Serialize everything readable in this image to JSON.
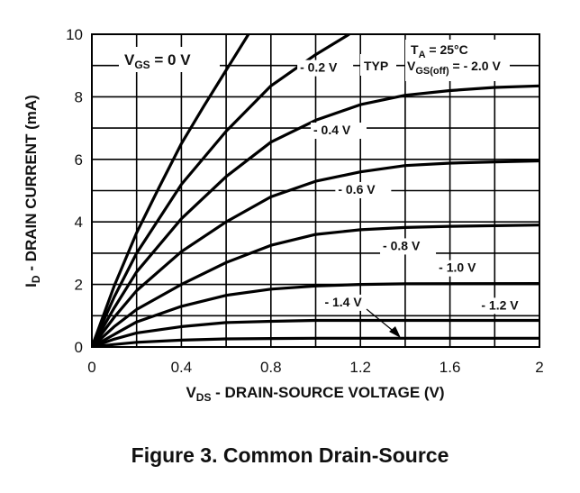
{
  "caption": "Figure 3. Common Drain-Source",
  "chart_data": {
    "type": "line",
    "xlabel_main": "V",
    "xlabel_sub": "DS",
    "xlabel_rest": " - DRAIN-SOURCE VOLTAGE (V)",
    "ylabel_main": "I",
    "ylabel_sub": "D",
    "ylabel_rest": " - DRAIN CURRENT (mA)",
    "xlim": [
      0,
      2
    ],
    "ylim": [
      0,
      10
    ],
    "x_ticks": [
      "0",
      "0.4",
      "0.8",
      "1.2",
      "1.6",
      "2"
    ],
    "y_ticks": [
      "0",
      "2",
      "4",
      "6",
      "8",
      "10"
    ],
    "grid": true,
    "annotations": {
      "typ": "TYP",
      "ta_main": "T",
      "ta_sub": "A",
      "ta_rest": " = 25°C",
      "vgsoff_main": "V",
      "vgsoff_sub": "GS(off)",
      "vgsoff_rest": " = - 2.0 V",
      "vgs_main": "V",
      "vgs_sub": "GS",
      "vgs_rest": " = 0 V"
    },
    "series": [
      {
        "name": "0 V",
        "x": [
          0,
          0.1,
          0.2,
          0.3,
          0.4,
          0.5,
          0.6,
          0.7
        ],
        "y": [
          0,
          1.95,
          3.65,
          5.1,
          6.5,
          7.7,
          8.85,
          10.0
        ]
      },
      {
        "name": "- 0.2 V",
        "x": [
          0,
          0.1,
          0.2,
          0.4,
          0.6,
          0.8,
          1.0,
          1.15
        ],
        "y": [
          0,
          1.6,
          3.0,
          5.2,
          6.9,
          8.35,
          9.35,
          10.0
        ]
      },
      {
        "name": "- 0.4 V",
        "x": [
          0,
          0.1,
          0.2,
          0.4,
          0.6,
          0.8,
          1.0,
          1.2,
          1.4,
          1.6,
          1.8,
          2.0
        ],
        "y": [
          0,
          1.25,
          2.4,
          4.1,
          5.45,
          6.55,
          7.25,
          7.75,
          8.05,
          8.2,
          8.3,
          8.35
        ]
      },
      {
        "name": "- 0.6 V",
        "x": [
          0,
          0.1,
          0.2,
          0.4,
          0.6,
          0.8,
          1.0,
          1.2,
          1.4,
          1.6,
          1.8,
          2.0
        ],
        "y": [
          0,
          0.95,
          1.8,
          3.05,
          4.0,
          4.8,
          5.3,
          5.6,
          5.8,
          5.88,
          5.92,
          5.95
        ]
      },
      {
        "name": "- 0.8 V",
        "x": [
          0,
          0.1,
          0.2,
          0.4,
          0.6,
          0.8,
          1.0,
          1.2,
          1.4,
          1.6,
          1.8,
          2.0
        ],
        "y": [
          0,
          0.65,
          1.2,
          2.0,
          2.7,
          3.25,
          3.6,
          3.75,
          3.82,
          3.86,
          3.88,
          3.9
        ]
      },
      {
        "name": "- 1.0 V",
        "x": [
          0,
          0.1,
          0.2,
          0.4,
          0.6,
          0.8,
          1.0,
          1.2,
          1.4,
          2.0
        ],
        "y": [
          0,
          0.4,
          0.8,
          1.3,
          1.65,
          1.85,
          1.95,
          2.0,
          2.02,
          2.03
        ]
      },
      {
        "name": "- 1.2 V",
        "x": [
          0,
          0.1,
          0.2,
          0.4,
          0.6,
          0.8,
          1.0,
          2.0
        ],
        "y": [
          0,
          0.25,
          0.45,
          0.65,
          0.78,
          0.82,
          0.85,
          0.85
        ]
      },
      {
        "name": "- 1.4 V",
        "x": [
          0,
          0.1,
          0.2,
          0.4,
          0.6,
          0.8,
          1.0,
          2.0
        ],
        "y": [
          0,
          0.08,
          0.15,
          0.22,
          0.26,
          0.27,
          0.28,
          0.28
        ]
      }
    ],
    "curve_labels": [
      {
        "text": "- 0.2 V",
        "x": 0.93,
        "y": 8.8
      },
      {
        "text": "- 0.4 V",
        "x": 0.99,
        "y": 6.8
      },
      {
        "text": "- 0.6 V",
        "x": 1.1,
        "y": 4.9
      },
      {
        "text": "- 0.8 V",
        "x": 1.3,
        "y": 3.1
      },
      {
        "text": "- 1.0 V",
        "x": 1.55,
        "y": 2.4
      },
      {
        "text": "- 1.2 V",
        "x": 1.74,
        "y": 1.2
      },
      {
        "text": "- 1.4 V",
        "x": 1.04,
        "y": 1.3
      }
    ]
  }
}
